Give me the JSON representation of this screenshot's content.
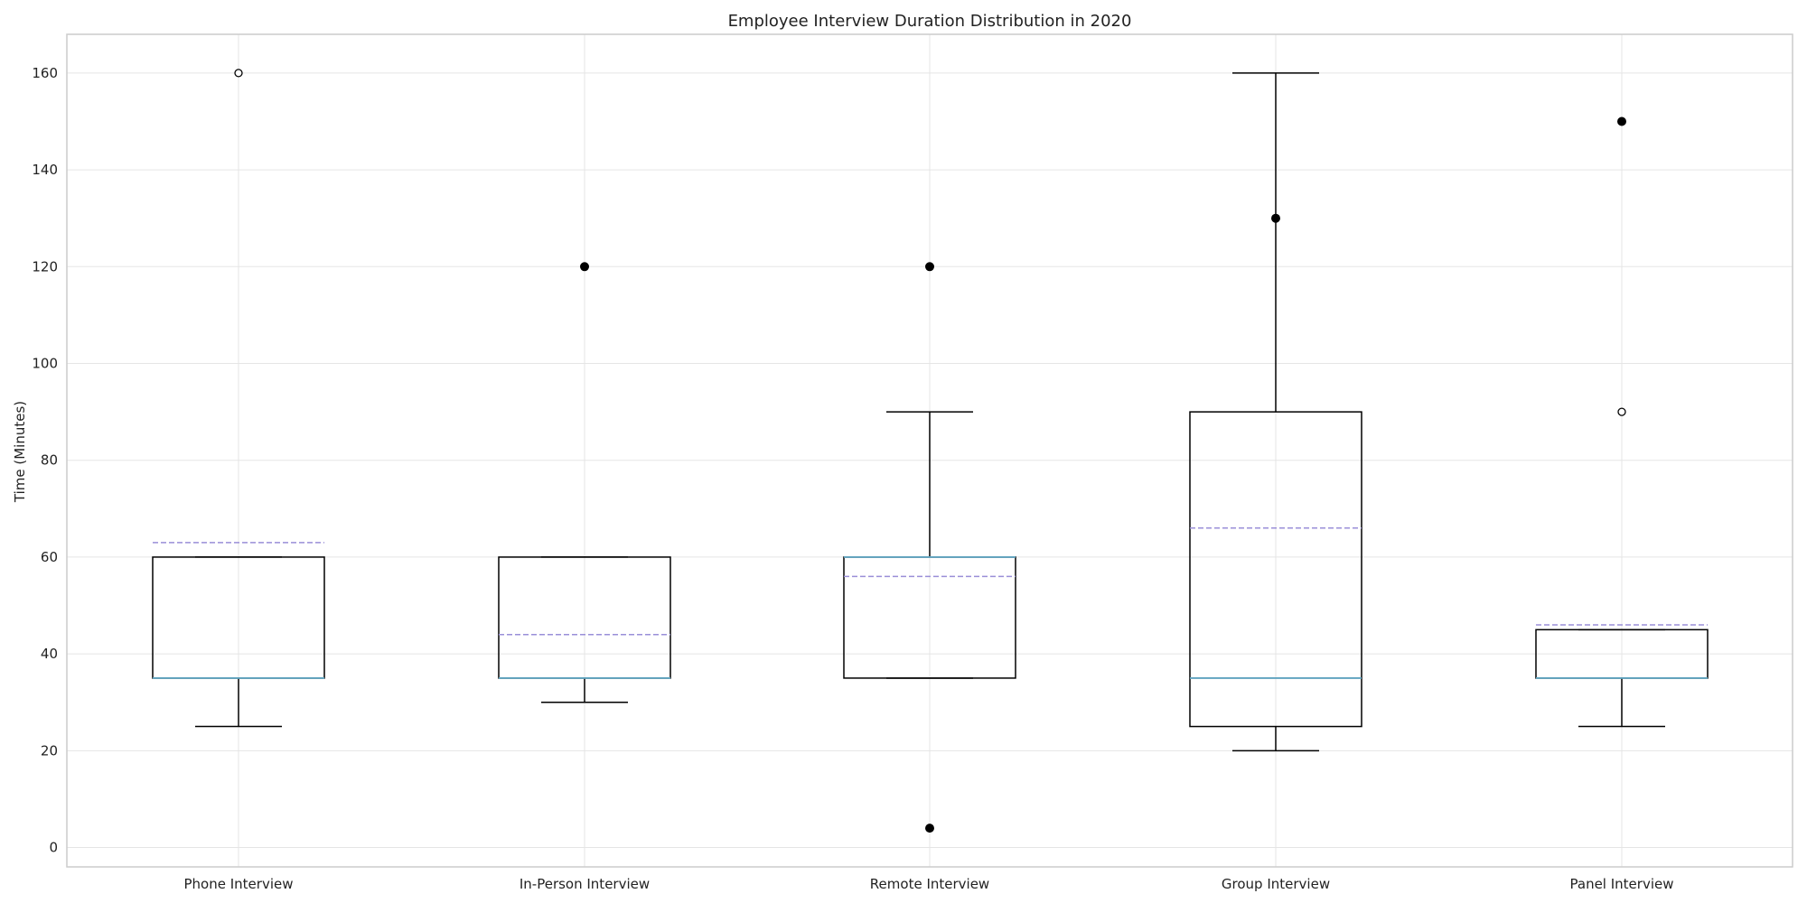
{
  "chart_data": {
    "type": "box",
    "title": "Employee Interview Duration Distribution in 2020",
    "xlabel": "",
    "ylabel": "Time (Minutes)",
    "ylim": [
      -4,
      168
    ],
    "yticks": [
      0,
      20,
      40,
      60,
      80,
      100,
      120,
      140,
      160
    ],
    "grid": true,
    "categories": [
      "Phone Interview",
      "In-Person Interview",
      "Remote Interview",
      "Group Interview",
      "Panel Interview"
    ],
    "boxes": [
      {
        "whisker_low": 25,
        "q1": 35,
        "median": 35,
        "q3": 60,
        "whisker_high": 60,
        "mean": 63,
        "outliers": [
          160
        ],
        "outliers_filled": []
      },
      {
        "whisker_low": 30,
        "q1": 35,
        "median": 35,
        "q3": 60,
        "whisker_high": 60,
        "mean": 44,
        "outliers": [],
        "outliers_filled": [
          120
        ]
      },
      {
        "whisker_low": 35,
        "q1": 35,
        "median": 60,
        "q3": 60,
        "whisker_high": 90,
        "mean": 56,
        "outliers": [],
        "outliers_filled": [
          120,
          4
        ]
      },
      {
        "whisker_low": 20,
        "q1": 25,
        "median": 35,
        "q3": 90,
        "whisker_high": 160,
        "mean": 66,
        "outliers": [],
        "outliers_filled": [
          130
        ]
      },
      {
        "whisker_low": 25,
        "q1": 35,
        "median": 35,
        "q3": 45,
        "whisker_high": 45,
        "mean": 46,
        "outliers": [
          90
        ],
        "outliers_filled": [
          150
        ]
      }
    ],
    "colors": {
      "box": "#000000",
      "median": "#5fa3bf",
      "mean": "#9a8fd8",
      "grid": "#e5e5e5",
      "frame": "#cccccc"
    }
  }
}
